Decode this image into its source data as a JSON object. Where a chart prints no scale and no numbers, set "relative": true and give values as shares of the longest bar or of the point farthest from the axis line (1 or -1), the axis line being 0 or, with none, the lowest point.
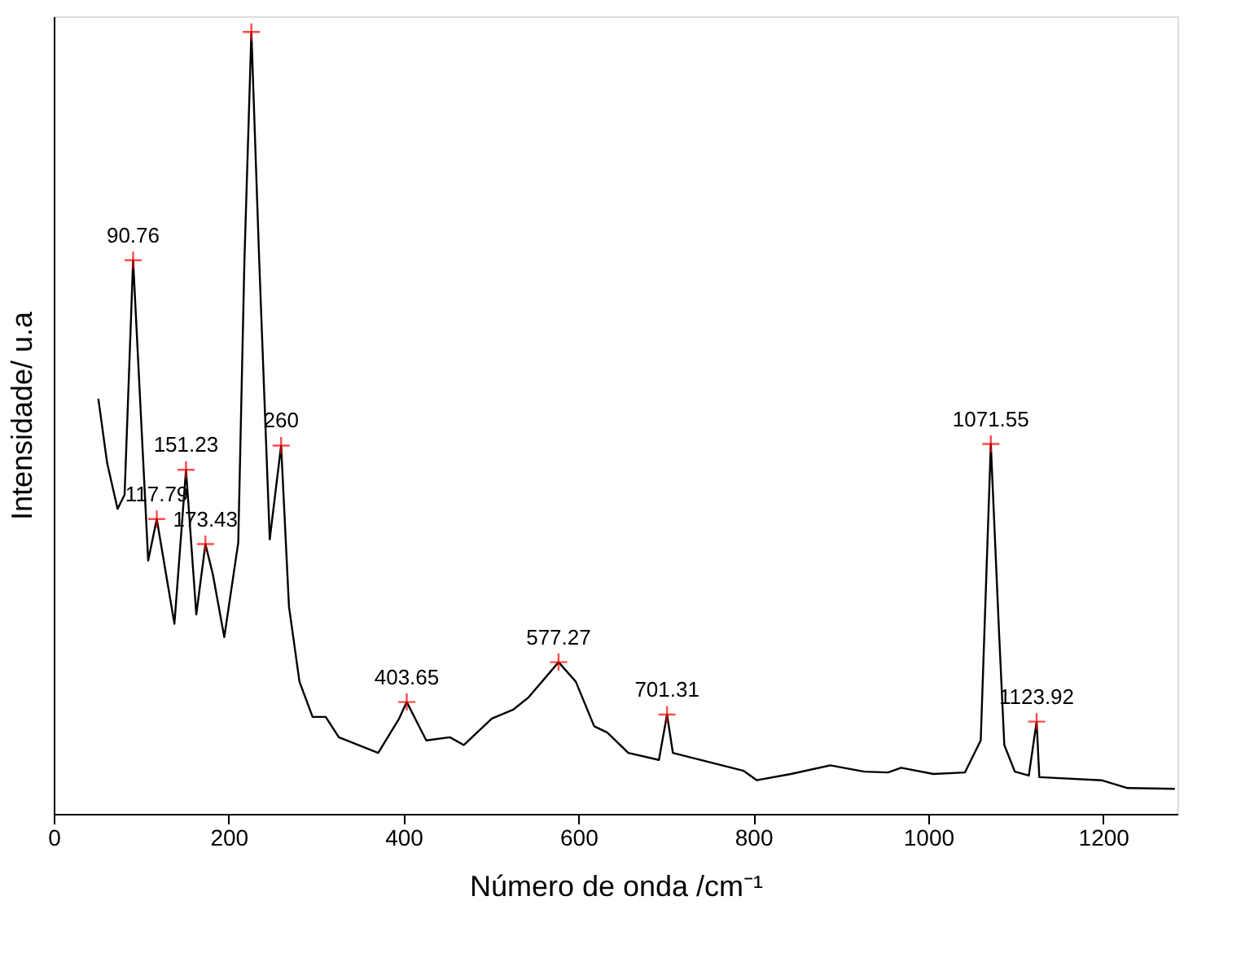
{
  "chart_data": {
    "type": "line",
    "xlabel": "Número de onda /cm⁻¹",
    "ylabel": "Intensidade/ u.a",
    "relative": true,
    "xlim": [
      0,
      1285
    ],
    "xticks": [
      0,
      200,
      400,
      600,
      800,
      1000,
      1200
    ],
    "grid": false,
    "series": [
      {
        "color": "#000000",
        "marker": "none",
        "x": [
          51,
          61,
          73,
          81,
          90.76,
          108,
          117.79,
          138,
          151.23,
          163,
          173.43,
          182,
          195,
          211,
          218,
          226,
          235,
          247,
          260,
          269,
          281,
          296,
          311,
          326,
          371,
          395,
          403.65,
          426,
          453,
          469,
          501,
          525,
          543,
          577.27,
          597,
          618,
          633,
          657,
          692,
          701.31,
          708,
          789,
          804,
          843,
          888,
          927,
          954,
          969,
          1006,
          1042,
          1060,
          1071.55,
          1081,
          1087,
          1099,
          1115,
          1123.92,
          1127,
          1198,
          1228,
          1282
        ],
        "values": [
          0.531,
          0.449,
          0.39,
          0.408,
          0.708,
          0.324,
          0.377,
          0.243,
          0.44,
          0.255,
          0.345,
          0.306,
          0.226,
          0.347,
          0.706,
          1.0,
          0.706,
          0.351,
          0.471,
          0.265,
          0.169,
          0.124,
          0.124,
          0.098,
          0.078,
          0.122,
          0.143,
          0.094,
          0.098,
          0.088,
          0.122,
          0.133,
          0.149,
          0.194,
          0.169,
          0.112,
          0.104,
          0.078,
          0.069,
          0.127,
          0.078,
          0.055,
          0.043,
          0.051,
          0.062,
          0.054,
          0.053,
          0.059,
          0.051,
          0.053,
          0.094,
          0.473,
          0.231,
          0.088,
          0.054,
          0.049,
          0.118,
          0.047,
          0.043,
          0.033,
          0.032
        ]
      },
      {
        "type": "scatter",
        "color": "#ff0000",
        "marker": "cross",
        "x": [
          90.76,
          117.79,
          151.23,
          173.43,
          226,
          260,
          403.65,
          577.27,
          701.31,
          1071.55,
          1123.92
        ],
        "values": [
          0.708,
          0.377,
          0.44,
          0.345,
          1.0,
          0.471,
          0.143,
          0.194,
          0.127,
          0.473,
          0.118
        ]
      }
    ],
    "annotations": [
      {
        "text": "90.76",
        "x": 90.76,
        "y": 0.708
      },
      {
        "text": "117.79",
        "x": 117.79,
        "y": 0.377
      },
      {
        "text": "151.23",
        "x": 151.23,
        "y": 0.44
      },
      {
        "text": "173.43",
        "x": 173.43,
        "y": 0.345
      },
      {
        "text": "260",
        "x": 260,
        "y": 0.471
      },
      {
        "text": "403.65",
        "x": 403.65,
        "y": 0.143
      },
      {
        "text": "577.27",
        "x": 577.27,
        "y": 0.194
      },
      {
        "text": "701.31",
        "x": 701.31,
        "y": 0.127
      },
      {
        "text": "1071.55",
        "x": 1071.55,
        "y": 0.473
      },
      {
        "text": "1123.92",
        "x": 1123.92,
        "y": 0.118
      }
    ]
  }
}
